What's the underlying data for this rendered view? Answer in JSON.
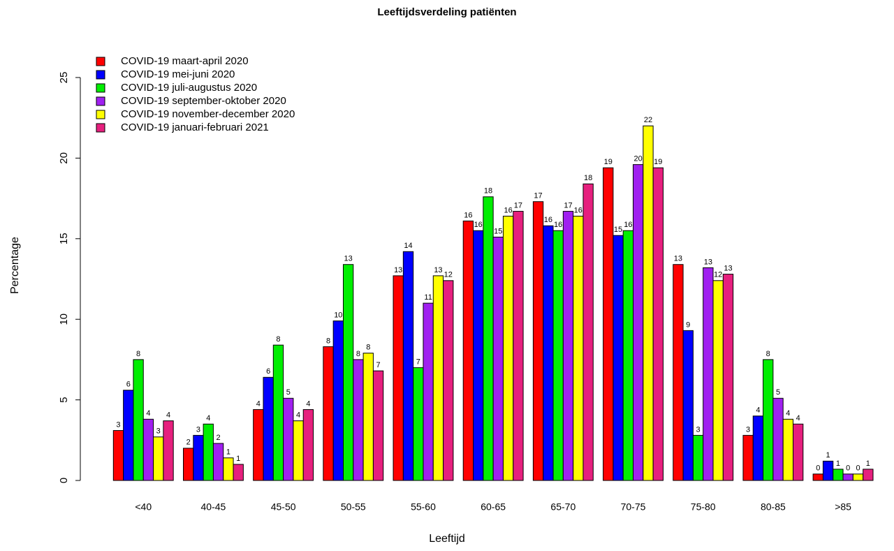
{
  "chart_data": {
    "type": "grouped_bar",
    "title": "Leeftijdsverdeling patiënten",
    "x_label": "Leeftijd",
    "y_label": "Percentage",
    "categories": [
      "<40",
      "40-45",
      "45-50",
      "50-55",
      "55-60",
      "60-65",
      "65-70",
      "70-75",
      "75-80",
      "80-85",
      ">85"
    ],
    "ylim": [
      0,
      25
    ],
    "yticks": [
      0,
      5,
      10,
      15,
      20,
      25
    ],
    "legend_position": "topleft",
    "series": [
      {
        "name": "COVID-19 maart-april 2020",
        "color": "#ff0000",
        "values": [
          3.1,
          2.0,
          4.4,
          8.3,
          12.7,
          16.1,
          17.3,
          19.4,
          13.4,
          2.8,
          0.4
        ],
        "value_labels": [
          "3",
          "2",
          "4",
          "8",
          "13",
          "16",
          "17",
          "19",
          "13",
          "3",
          "0"
        ]
      },
      {
        "name": "COVID-19 mei-juni 2020",
        "color": "#0000ff",
        "values": [
          5.6,
          2.8,
          6.4,
          9.9,
          14.2,
          15.5,
          15.8,
          15.2,
          9.3,
          4.0,
          1.2
        ],
        "value_labels": [
          "6",
          "3",
          "6",
          "10",
          "14",
          "16",
          "16",
          "15",
          "9",
          "4",
          "1"
        ]
      },
      {
        "name": "COVID-19 juli-augustus 2020",
        "color": "#00ee00",
        "values": [
          7.5,
          3.5,
          8.4,
          13.4,
          7.0,
          17.6,
          15.5,
          15.5,
          2.8,
          7.5,
          0.7
        ],
        "value_labels": [
          "8",
          "4",
          "8",
          "13",
          "7",
          "18",
          "16",
          "16",
          "3",
          "8",
          "1"
        ]
      },
      {
        "name": "COVID-19 september-oktober 2020",
        "color": "#a020f0",
        "values": [
          3.8,
          2.3,
          5.1,
          7.5,
          11.0,
          15.1,
          16.7,
          19.6,
          13.2,
          5.1,
          0.4
        ],
        "value_labels": [
          "4",
          "2",
          "5",
          "8",
          "11",
          "15",
          "17",
          "20",
          "13",
          "5",
          "0"
        ]
      },
      {
        "name": "COVID-19 november-december 2020",
        "color": "#ffff00",
        "values": [
          2.7,
          1.4,
          3.7,
          7.9,
          12.7,
          16.4,
          16.4,
          22.0,
          12.4,
          3.8,
          0.4
        ],
        "value_labels": [
          "3",
          "1",
          "4",
          "8",
          "13",
          "16",
          "16",
          "22",
          "12",
          "4",
          "0"
        ]
      },
      {
        "name": "COVID-19 januari-februari 2021",
        "color": "#e6207e",
        "values": [
          3.7,
          1.0,
          4.4,
          6.8,
          12.4,
          16.7,
          18.4,
          19.4,
          12.8,
          3.5,
          0.7
        ],
        "value_labels": [
          "4",
          "1",
          "4",
          "7",
          "12",
          "17",
          "18",
          "19",
          "13",
          "4",
          "1"
        ]
      }
    ]
  }
}
